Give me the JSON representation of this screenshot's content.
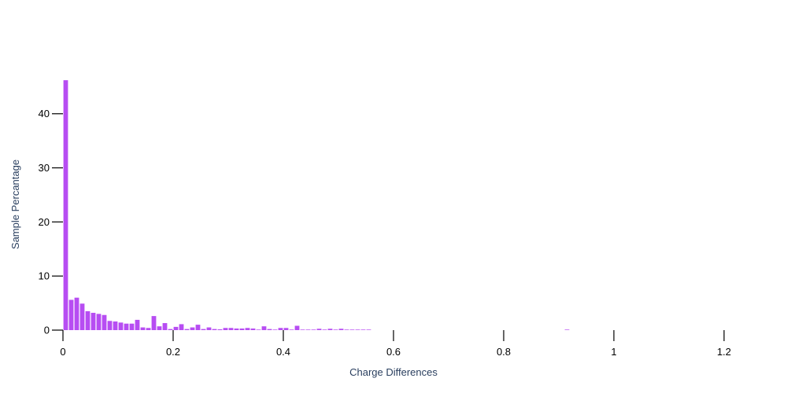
{
  "chart_data": {
    "type": "bar",
    "title": "",
    "xlabel": "Charge Differences",
    "ylabel": "Sample Percantage",
    "bin_width": 0.01,
    "xlim": [
      0,
      1.3
    ],
    "ylim": [
      0,
      46.5
    ],
    "x_ticks": [
      0,
      0.2,
      0.4,
      0.6,
      0.8,
      1,
      1.2
    ],
    "x_tick_labels": [
      "0",
      "0.2",
      "0.4",
      "0.6",
      "0.8",
      "1",
      "1.2"
    ],
    "y_ticks": [
      0,
      10,
      20,
      30,
      40
    ],
    "y_tick_labels": [
      "0",
      "10",
      "20",
      "30",
      "40"
    ],
    "grid": false,
    "bar_color": "#b74df2",
    "x": [
      0.005,
      0.015,
      0.025,
      0.035,
      0.045,
      0.055,
      0.065,
      0.075,
      0.085,
      0.095,
      0.105,
      0.115,
      0.125,
      0.135,
      0.145,
      0.155,
      0.165,
      0.175,
      0.185,
      0.195,
      0.205,
      0.215,
      0.225,
      0.235,
      0.245,
      0.255,
      0.265,
      0.275,
      0.285,
      0.295,
      0.305,
      0.315,
      0.325,
      0.335,
      0.345,
      0.355,
      0.365,
      0.375,
      0.385,
      0.395,
      0.405,
      0.415,
      0.425,
      0.435,
      0.445,
      0.455,
      0.465,
      0.475,
      0.485,
      0.495,
      0.505,
      0.515,
      0.525,
      0.535,
      0.545,
      0.555,
      0.915
    ],
    "values": [
      46.2,
      5.6,
      6.0,
      4.9,
      3.5,
      3.2,
      3.0,
      2.8,
      1.7,
      1.6,
      1.4,
      1.2,
      1.2,
      1.9,
      0.5,
      0.4,
      2.6,
      0.7,
      1.3,
      0.2,
      0.6,
      1.1,
      0.2,
      0.5,
      1.0,
      0.2,
      0.5,
      0.2,
      0.15,
      0.4,
      0.4,
      0.3,
      0.3,
      0.4,
      0.3,
      0.1,
      0.7,
      0.2,
      0.1,
      0.4,
      0.4,
      0.1,
      0.8,
      0.1,
      0.1,
      0.1,
      0.25,
      0.1,
      0.25,
      0.1,
      0.25,
      0.1,
      0.1,
      0.1,
      0.1,
      0.1,
      0.1
    ]
  }
}
